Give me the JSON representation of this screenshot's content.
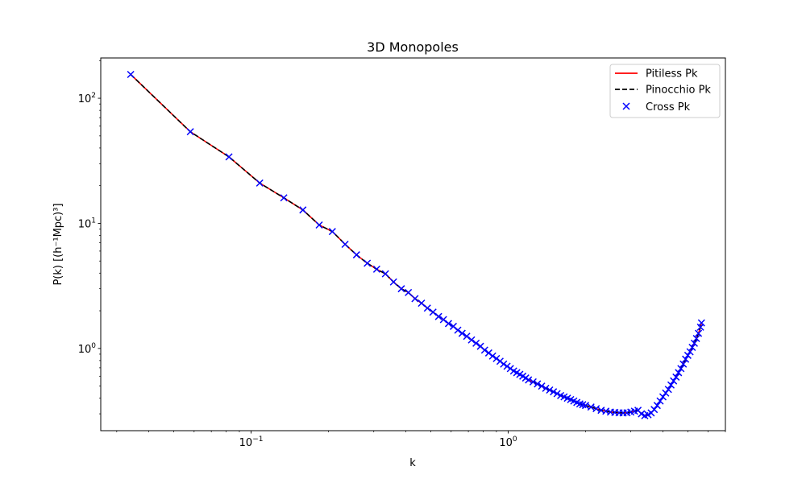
{
  "chart_data": {
    "type": "line",
    "title": "3D Monopoles",
    "xlabel": "k",
    "ylabel": "P(k) [(h⁻¹Mpc)³]",
    "x_scale": "log",
    "y_scale": "log",
    "xlim": [
      0.026,
      7.0
    ],
    "ylim": [
      0.22,
      210
    ],
    "x_ticks": [
      {
        "base": "10",
        "exp": "−1",
        "value": 0.1
      },
      {
        "base": "10",
        "exp": "0",
        "value": 1
      }
    ],
    "y_ticks": [
      {
        "base": "10",
        "exp": "0",
        "value": 1
      },
      {
        "base": "10",
        "exp": "1",
        "value": 10
      },
      {
        "base": "10",
        "exp": "2",
        "value": 100
      }
    ],
    "grid": false,
    "legend_position": "upper right",
    "series": [
      {
        "name": "Pitiless Pk",
        "style": "solid line",
        "color": "#ff0000"
      },
      {
        "name": "Pinocchio Pk",
        "style": "dashed line",
        "color": "#000000"
      },
      {
        "name": "Cross Pk",
        "style": "x markers",
        "color": "#0000ff"
      }
    ],
    "x": [
      0.034,
      0.058,
      0.082,
      0.108,
      0.134,
      0.159,
      0.184,
      0.207,
      0.232,
      0.257,
      0.283,
      0.308,
      0.333,
      0.358,
      0.384,
      0.409,
      0.434,
      0.46,
      0.485,
      0.51,
      0.536,
      0.56,
      0.586,
      0.612,
      0.637,
      0.662,
      0.69,
      0.72,
      0.75,
      0.78,
      0.81,
      0.84,
      0.87,
      0.9,
      0.93,
      0.96,
      0.99,
      1.02,
      1.05,
      1.08,
      1.11,
      1.14,
      1.17,
      1.2,
      1.25,
      1.3,
      1.35,
      1.4,
      1.45,
      1.5,
      1.55,
      1.6,
      1.65,
      1.7,
      1.75,
      1.8,
      1.85,
      1.9,
      1.95,
      2.0,
      2.1,
      2.2,
      2.3,
      2.4,
      2.5,
      2.6,
      2.7,
      2.8,
      2.9,
      3.0,
      3.1,
      3.2,
      3.3,
      3.4,
      3.5,
      3.6,
      3.7,
      3.8,
      3.9,
      4.0,
      4.1,
      4.2,
      4.3,
      4.4,
      4.5,
      4.6,
      4.7,
      4.8,
      4.9,
      5.0,
      5.1,
      5.2,
      5.3,
      5.4,
      5.5,
      5.6,
      5.65
    ],
    "y": [
      155,
      54,
      34,
      21,
      16,
      12.8,
      9.7,
      8.6,
      6.8,
      5.6,
      4.8,
      4.3,
      3.95,
      3.4,
      3.0,
      2.8,
      2.5,
      2.3,
      2.1,
      1.95,
      1.8,
      1.7,
      1.58,
      1.5,
      1.4,
      1.32,
      1.25,
      1.17,
      1.1,
      1.04,
      0.97,
      0.92,
      0.87,
      0.83,
      0.79,
      0.75,
      0.72,
      0.69,
      0.66,
      0.64,
      0.62,
      0.6,
      0.58,
      0.56,
      0.54,
      0.52,
      0.5,
      0.48,
      0.465,
      0.45,
      0.435,
      0.42,
      0.41,
      0.4,
      0.39,
      0.38,
      0.37,
      0.36,
      0.355,
      0.35,
      0.34,
      0.33,
      0.32,
      0.315,
      0.31,
      0.308,
      0.306,
      0.305,
      0.306,
      0.31,
      0.315,
      0.32,
      0.3,
      0.29,
      0.295,
      0.305,
      0.325,
      0.35,
      0.38,
      0.41,
      0.44,
      0.47,
      0.51,
      0.55,
      0.59,
      0.64,
      0.69,
      0.75,
      0.82,
      0.88,
      0.94,
      1.02,
      1.1,
      1.2,
      1.32,
      1.48,
      1.6
    ]
  }
}
